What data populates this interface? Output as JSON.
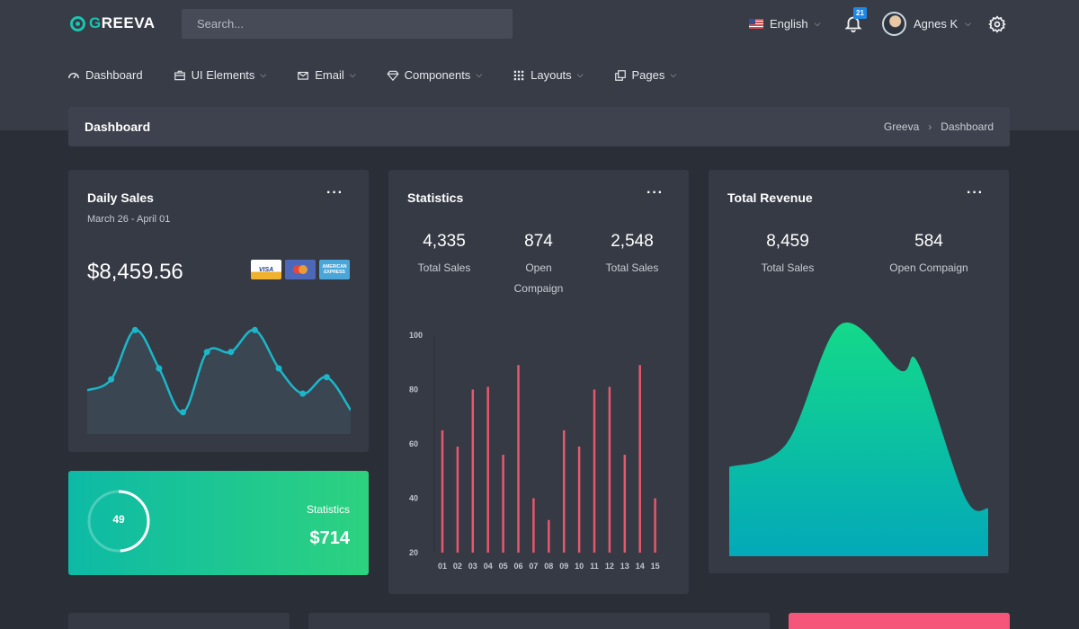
{
  "header": {
    "logo_first": "G",
    "logo_rest": "REEVA",
    "search_placeholder": "Search...",
    "language": "English",
    "notifications": "21",
    "user_name": "Agnes K"
  },
  "nav": [
    {
      "label": "Dashboard",
      "icon": "gauge-icon"
    },
    {
      "label": "UI Elements",
      "icon": "briefcase-icon"
    },
    {
      "label": "Email",
      "icon": "mail-icon"
    },
    {
      "label": "Components",
      "icon": "diamond-icon"
    },
    {
      "label": "Layouts",
      "icon": "grid-icon"
    },
    {
      "label": "Pages",
      "icon": "copy-icon"
    }
  ],
  "breadcrumb": {
    "title": "Dashboard",
    "root": "Greeva",
    "current": "Dashboard"
  },
  "daily": {
    "title": "Daily Sales",
    "range": "March 26 - April 01",
    "value": "$8,459.56",
    "cards": [
      "VISA",
      "mastercard",
      "AMERICAN EXPRESS"
    ]
  },
  "statistics": {
    "title": "Statistics",
    "stats": [
      {
        "value": "4,335",
        "label": "Total Sales"
      },
      {
        "value": "874",
        "label": "Open Compaign"
      },
      {
        "value": "2,548",
        "label": "Total Sales"
      }
    ]
  },
  "revenue": {
    "title": "Total Revenue",
    "stats": [
      {
        "value": "8,459",
        "label": "Total Sales"
      },
      {
        "value": "584",
        "label": "Open Compaign"
      }
    ]
  },
  "green_card": {
    "ring_value": "49",
    "label": "Statistics",
    "value": "$714"
  },
  "colors": {
    "accent": "#1ac4b0",
    "bar": "#e8586d",
    "line": "#1bb7c9",
    "pink": "#f5577a"
  },
  "chart_data": [
    {
      "type": "area",
      "title": "",
      "x": [
        1,
        2,
        3,
        4,
        5,
        6,
        7,
        8,
        9,
        10,
        11,
        12
      ],
      "values": [
        30,
        40,
        85,
        50,
        10,
        65,
        65,
        85,
        50,
        27,
        42,
        12
      ],
      "ylim": [
        0,
        100
      ]
    },
    {
      "type": "bar",
      "title": "",
      "categories": [
        "01",
        "02",
        "03",
        "04",
        "05",
        "06",
        "07",
        "08",
        "09",
        "10",
        "11",
        "12",
        "13",
        "14",
        "15"
      ],
      "values": [
        65,
        59,
        80,
        81,
        56,
        89,
        40,
        32,
        65,
        59,
        80,
        81,
        56,
        89,
        40
      ],
      "ylim": [
        20,
        100
      ],
      "yticks": [
        100,
        80,
        60,
        40,
        20
      ]
    },
    {
      "type": "area",
      "title": "",
      "x": [
        1,
        2,
        3,
        4,
        5,
        6,
        7
      ],
      "values": [
        38,
        48,
        100,
        80,
        83,
        25,
        20
      ],
      "ylim": [
        0,
        100
      ]
    }
  ]
}
